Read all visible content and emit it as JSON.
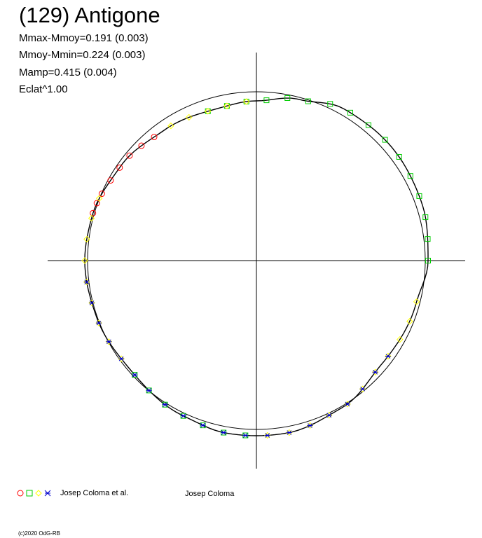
{
  "header": {
    "title": "(129) Antigone",
    "stats": [
      "Mmax-Mmoy=0.191 (0.003)",
      "Mmoy-Mmin=0.224 (0.003)",
      "Mamp=0.415 (0.004)",
      "Eclat^1.00"
    ]
  },
  "legend": {
    "author_left": "Josep Coloma et al.",
    "author_right": "Josep Coloma"
  },
  "footer": {
    "copyright": "(c)2020 OdG-RB"
  },
  "chart_data": {
    "type": "scatter",
    "description_of_axes": "polar light curve: phase as angle, brightness as radius",
    "grid": false,
    "reference_circle": true,
    "series": [
      {
        "marker": "circle",
        "color": "#ff0000",
        "phase": [
          0.36,
          0.375,
          0.39,
          0.405,
          0.42,
          0.435,
          0.445,
          0.455
        ]
      },
      {
        "marker": "square",
        "color": "#00cc00",
        "phase": [
          0.0,
          0.02,
          0.04,
          0.06,
          0.08,
          0.1,
          0.12,
          0.14,
          0.16,
          0.18,
          0.2,
          0.22,
          0.24,
          0.26,
          0.28,
          0.3,
          0.62,
          0.64,
          0.66,
          0.68,
          0.7,
          0.72,
          0.74
        ]
      },
      {
        "marker": "diamond",
        "color": "#ffff00",
        "phase": [
          0.26,
          0.28,
          0.3,
          0.32,
          0.34,
          0.44,
          0.46,
          0.48,
          0.5,
          0.52,
          0.54,
          0.56,
          0.58,
          0.6,
          0.76,
          0.78,
          0.8,
          0.82,
          0.84,
          0.86,
          0.88,
          0.9,
          0.92,
          0.94,
          0.96
        ]
      },
      {
        "marker": "star",
        "color": "#0000cc",
        "phase": [
          0.52,
          0.54,
          0.56,
          0.58,
          0.6,
          0.62,
          0.64,
          0.66,
          0.68,
          0.7,
          0.72,
          0.74,
          0.76,
          0.78,
          0.8,
          0.82,
          0.84,
          0.86,
          0.88,
          0.9
        ]
      }
    ]
  }
}
